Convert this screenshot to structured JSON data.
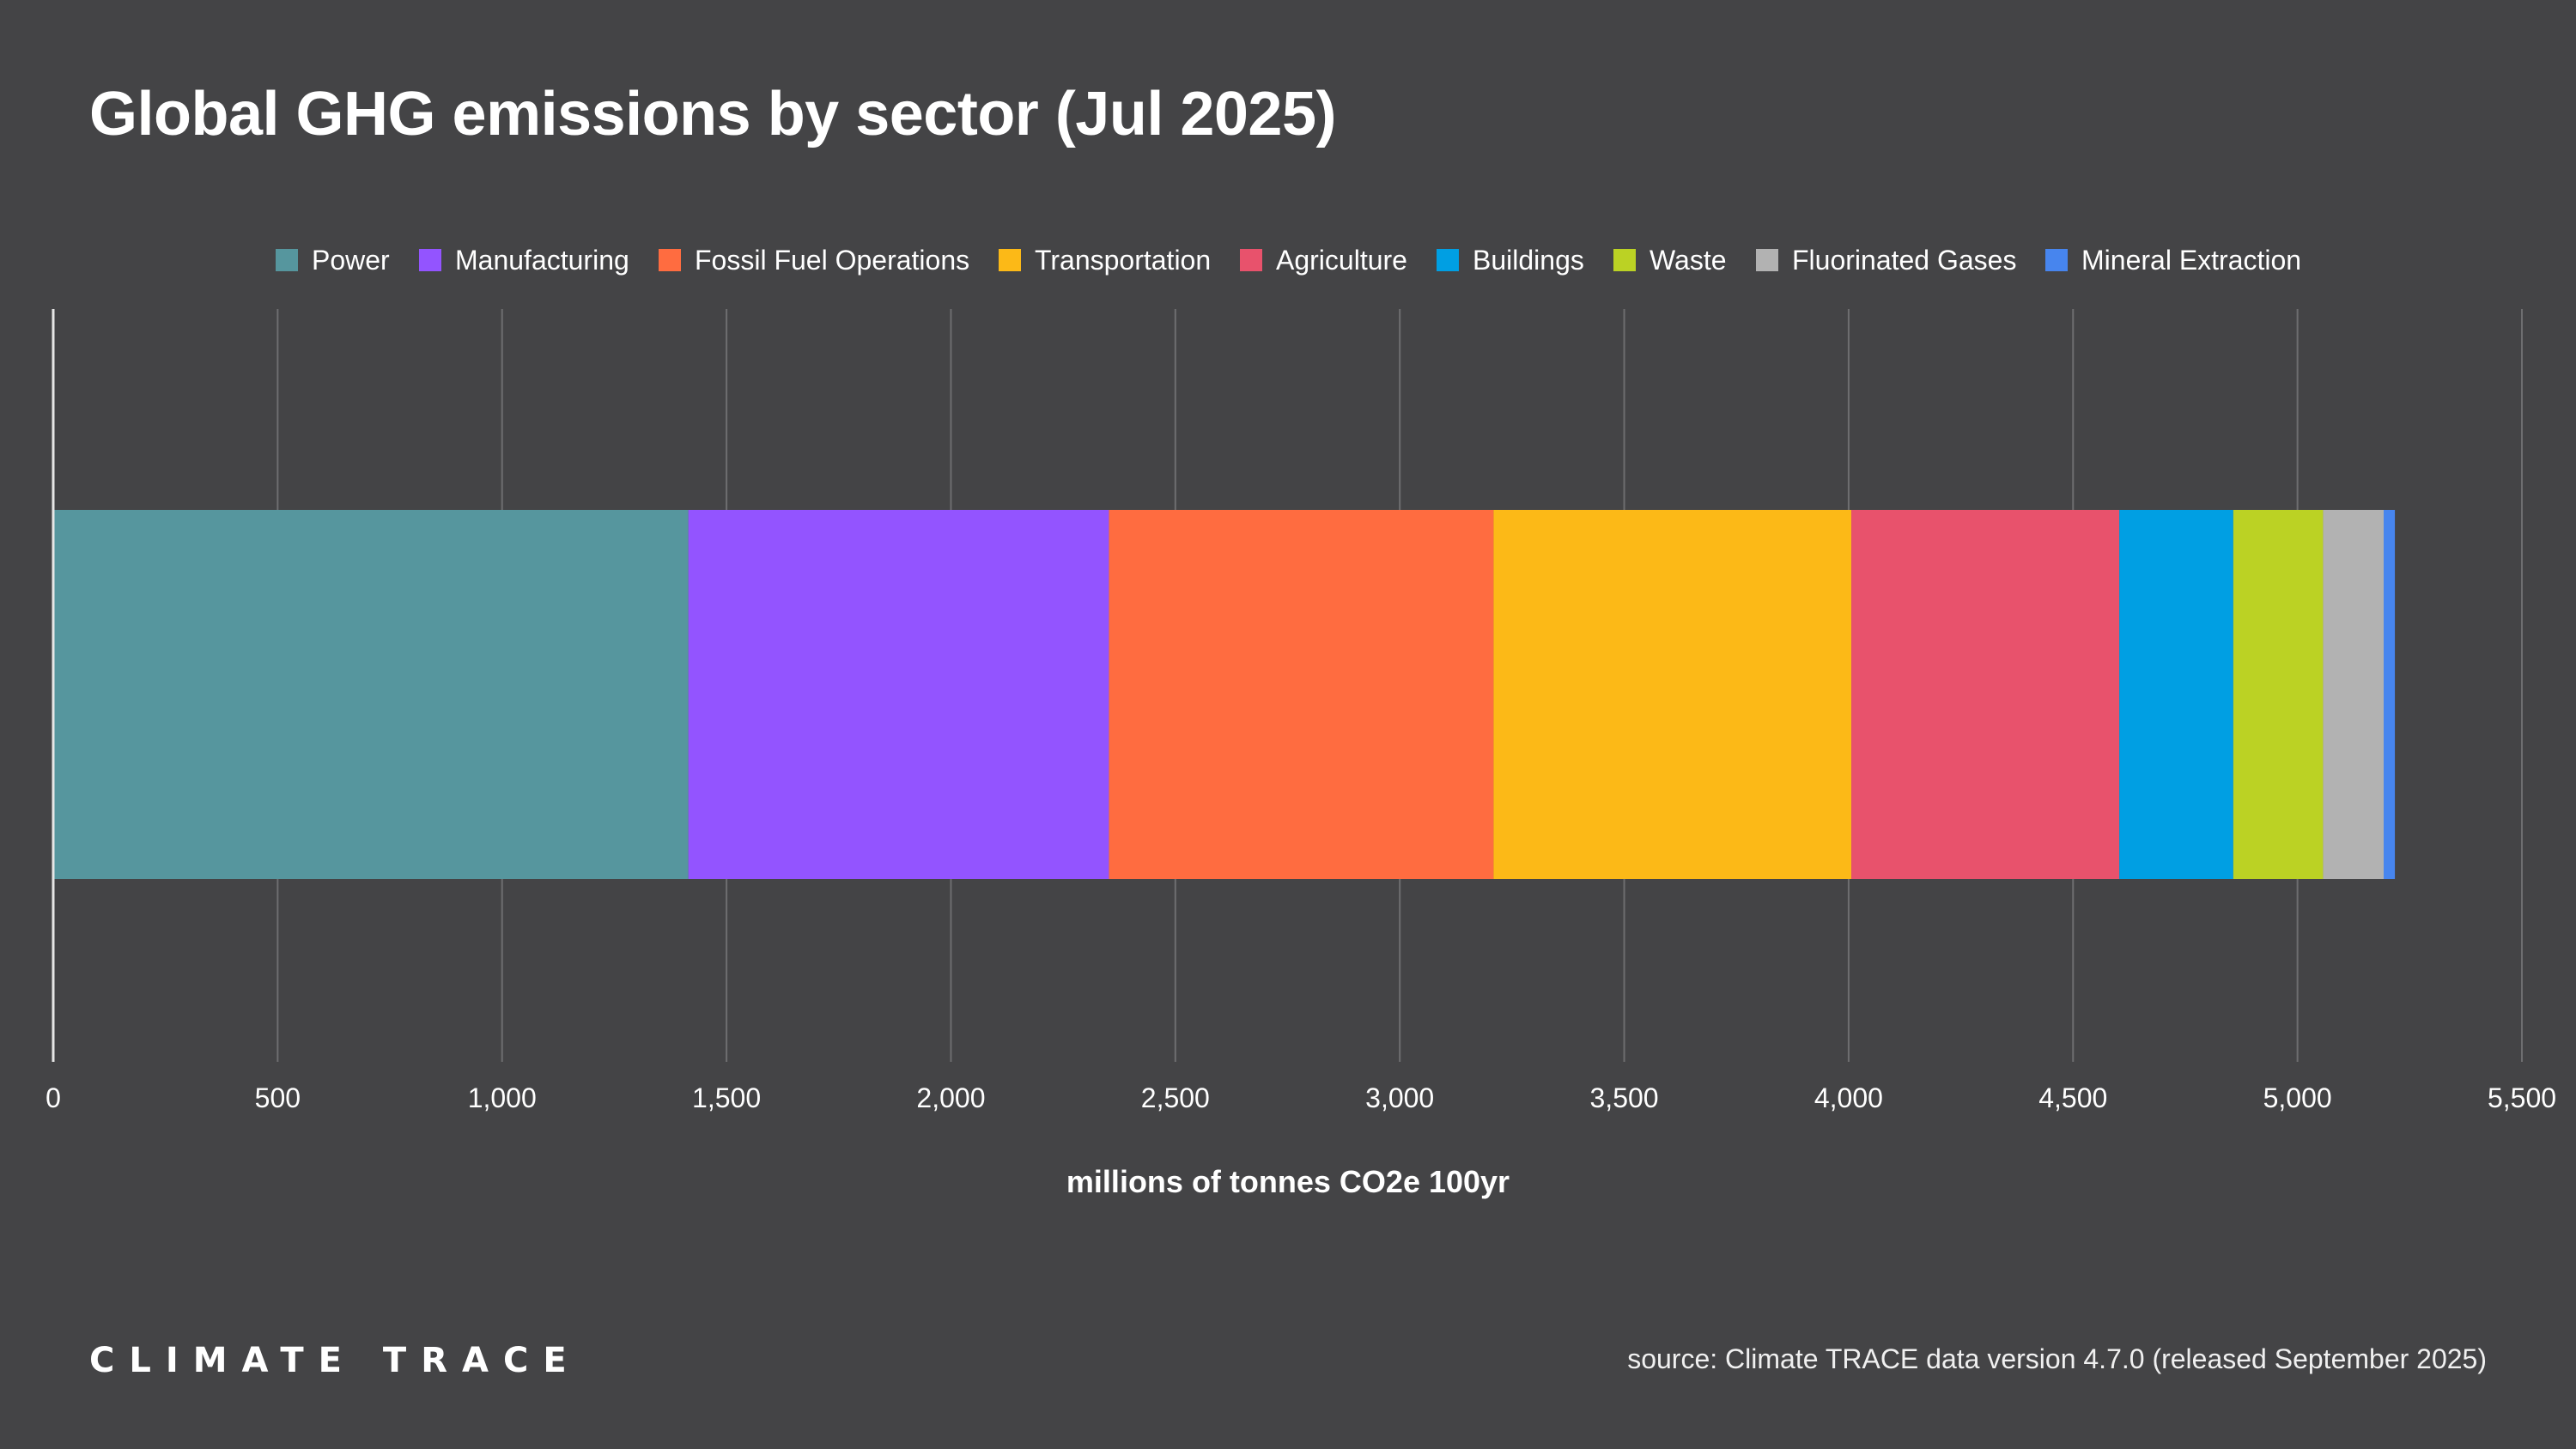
{
  "header": {
    "title": "Global GHG emissions by sector (Jul 2025)"
  },
  "footer": {
    "logo_text": "CLIMATE TRACE",
    "source": "source: Climate TRACE data version 4.7.0 (released September 2025)"
  },
  "chart_data": {
    "type": "bar",
    "orientation": "horizontal",
    "stacked": true,
    "title": "Global GHG emissions by sector (Jul 2025)",
    "xlabel": "millions of tonnes CO2e 100yr",
    "ylabel": "",
    "xlim": [
      0,
      5500
    ],
    "x_ticks": [
      0,
      500,
      1000,
      1500,
      2000,
      2500,
      3000,
      3500,
      4000,
      4500,
      5000,
      5500
    ],
    "x_tick_labels": [
      "0",
      "500",
      "1,000",
      "1,500",
      "2,000",
      "2,500",
      "3,000",
      "3,500",
      "4,000",
      "4,500",
      "5,000",
      "5,500"
    ],
    "grid": true,
    "legend_position": "top",
    "series": [
      {
        "name": "Power",
        "value": 1415,
        "color": "#56969E"
      },
      {
        "name": "Manufacturing",
        "value": 937,
        "color": "#9354FF"
      },
      {
        "name": "Fossil Fuel Operations",
        "value": 857,
        "color": "#FF6C40"
      },
      {
        "name": "Transportation",
        "value": 797,
        "color": "#FCB917"
      },
      {
        "name": "Agriculture",
        "value": 597,
        "color": "#E8526C"
      },
      {
        "name": "Buildings",
        "value": 254,
        "color": "#009FE3"
      },
      {
        "name": "Waste",
        "value": 200,
        "color": "#BBD224"
      },
      {
        "name": "Fluorinated Gases",
        "value": 135,
        "color": "#B2B2B2"
      },
      {
        "name": "Mineral Extraction",
        "value": 25,
        "color": "#4785EE"
      }
    ]
  }
}
